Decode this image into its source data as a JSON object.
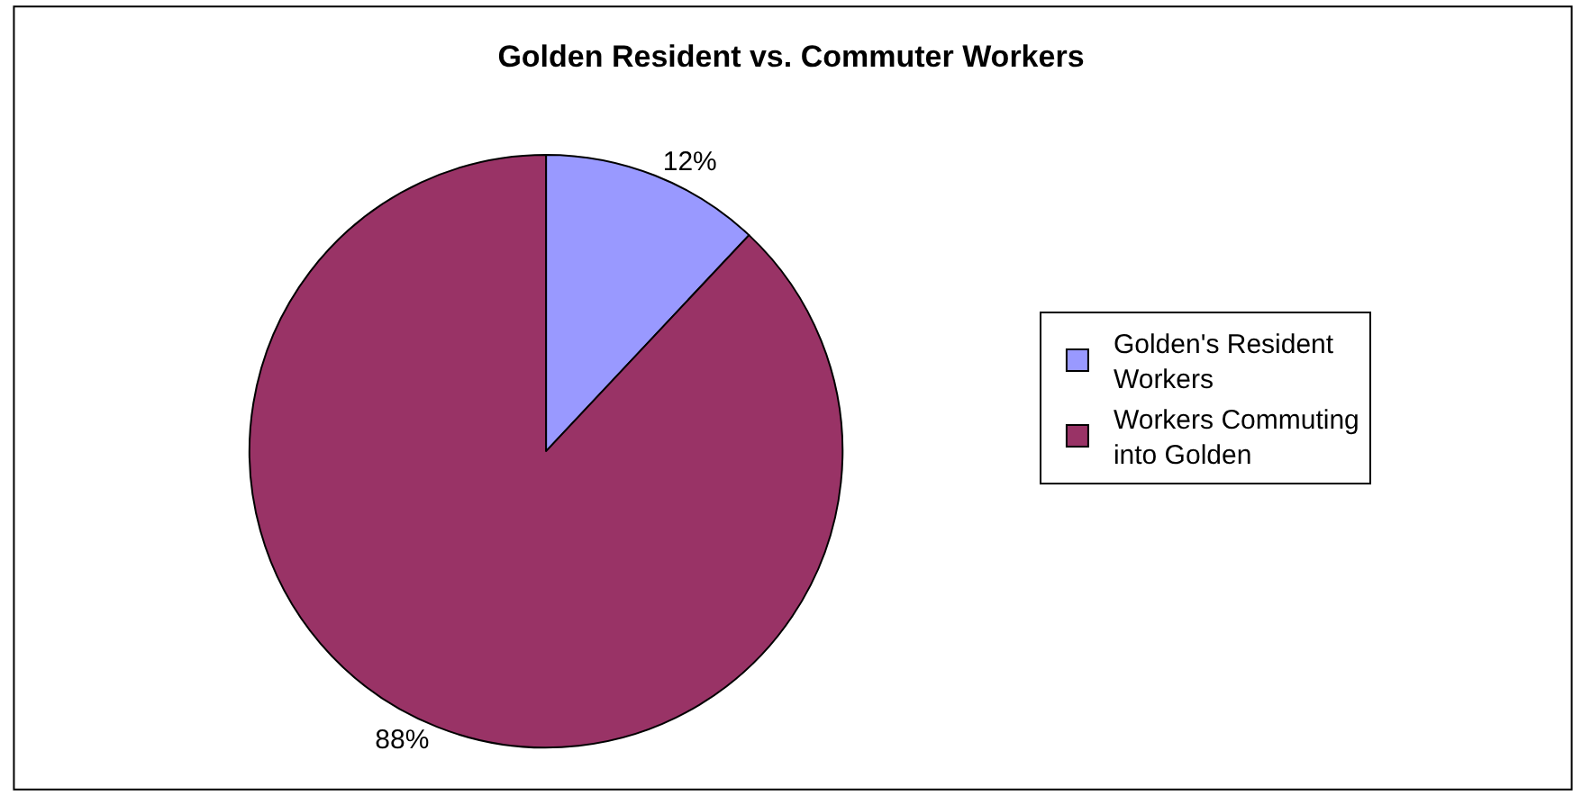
{
  "chart_data": {
    "type": "pie",
    "title": "Golden Resident vs. Commuter Workers",
    "categories": [
      "Golden's Resident Workers",
      "Workers Commuting into Golden"
    ],
    "values": [
      12,
      88
    ],
    "colors": [
      "#9999ff",
      "#993366"
    ],
    "value_labels": [
      "12%",
      "88%"
    ],
    "legend": "right"
  }
}
